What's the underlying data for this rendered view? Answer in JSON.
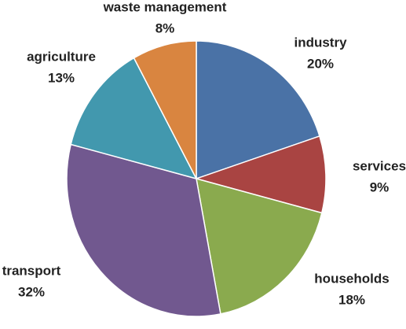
{
  "chart_data": {
    "type": "pie",
    "categories": [
      "industry",
      "services",
      "households",
      "transport",
      "agriculture",
      "waste management"
    ],
    "values": [
      20,
      9,
      18,
      32,
      13,
      8
    ],
    "value_labels": [
      "20%",
      "9%",
      "18%",
      "32%",
      "13%",
      "8%"
    ],
    "colors": [
      "#4a72a6",
      "#a94442",
      "#8aaa4e",
      "#71588f",
      "#4298ae",
      "#d98540"
    ]
  }
}
